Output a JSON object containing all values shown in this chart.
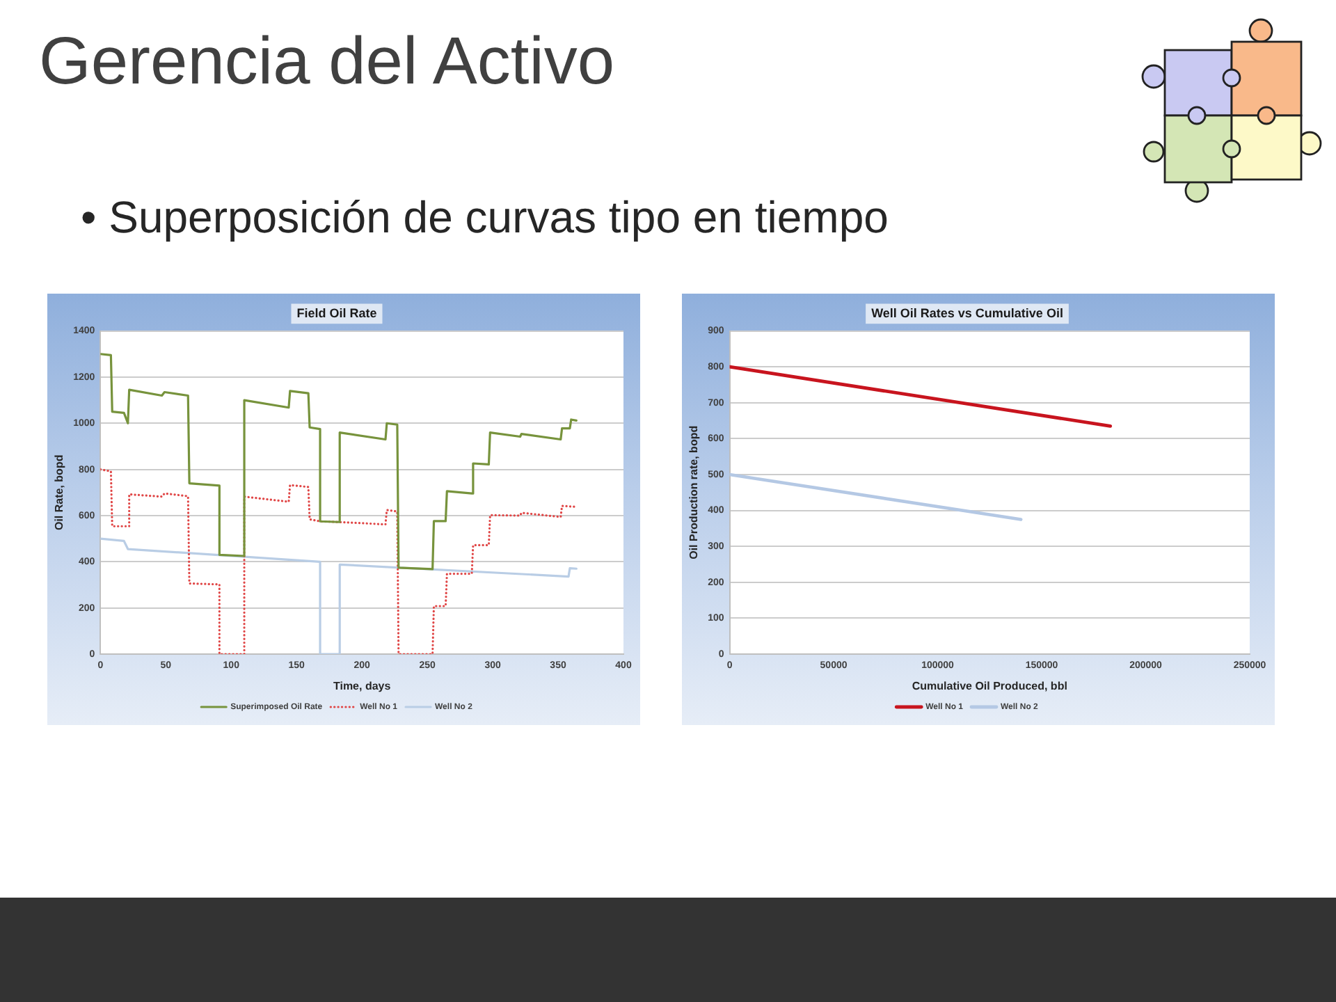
{
  "chart_data": [
    {
      "type": "line",
      "title": "Field Oil Rate",
      "xlabel": "Time, days",
      "ylabel": "Oil Rate, bopd",
      "annotations": [
        "Gerencia del Activo",
        "• Superposición de curvas tipo en tiempo"
      ],
      "xlim": [
        0,
        400
      ],
      "xticks": [
        0,
        50,
        100,
        150,
        200,
        250,
        300,
        350,
        400
      ],
      "ylim": [
        0,
        1400
      ],
      "yticks": [
        0,
        200,
        400,
        600,
        800,
        1000,
        1200,
        1400
      ],
      "grid": "y",
      "legend": "bottom",
      "series": [
        {
          "name": "Superimposed Oil Rate",
          "color": "#77933c",
          "x": [
            0,
            8,
            9,
            18,
            21,
            22,
            47,
            49,
            67,
            68,
            91,
            91,
            110,
            110,
            144,
            145,
            159,
            160,
            168,
            168,
            183,
            183,
            218,
            219,
            227,
            228,
            254,
            255,
            264,
            265,
            284,
            285,
            297,
            298,
            321,
            322,
            352,
            353,
            359,
            360,
            364
          ],
          "values": [
            1300,
            1295,
            1050,
            1045,
            1000,
            1145,
            1120,
            1135,
            1120,
            740,
            730,
            430,
            425,
            1100,
            1068,
            1140,
            1130,
            982,
            975,
            575,
            572,
            960,
            930,
            1000,
            994,
            374,
            368,
            576,
            576,
            706,
            696,
            826,
            822,
            960,
            942,
            954,
            930,
            978,
            978,
            1016,
            1012
          ]
        },
        {
          "name": "Well No 1",
          "color": "#e04646",
          "line_style": "dotted",
          "x": [
            0,
            8,
            9,
            22,
            22,
            47,
            49,
            67,
            68,
            91,
            91,
            110,
            110,
            144,
            145,
            159,
            160,
            168,
            183,
            218,
            219,
            227,
            228,
            254,
            255,
            264,
            265,
            284,
            285,
            297,
            298,
            321,
            322,
            352,
            353,
            364
          ],
          "values": [
            800,
            792,
            554,
            554,
            692,
            682,
            696,
            684,
            306,
            302,
            0,
            0,
            682,
            660,
            732,
            724,
            584,
            575,
            572,
            562,
            624,
            618,
            0,
            0,
            208,
            208,
            348,
            348,
            472,
            472,
            602,
            600,
            612,
            594,
            642,
            638
          ]
        },
        {
          "name": "Well No 2",
          "color": "#b9cde5",
          "x": [
            0,
            18,
            21,
            168,
            168,
            183,
            183,
            358,
            359,
            364
          ],
          "values": [
            500,
            490,
            455,
            400,
            0,
            0,
            388,
            336,
            372,
            370
          ]
        }
      ]
    },
    {
      "type": "line",
      "title": "Well Oil Rates vs Cumulative Oil",
      "xlabel": "Cumulative Oil Produced, bbl",
      "ylabel": "Oil Production rate, bopd",
      "xlim": [
        0,
        250000
      ],
      "xticks": [
        0,
        50000,
        100000,
        150000,
        200000,
        250000
      ],
      "ylim": [
        0,
        900
      ],
      "yticks": [
        0,
        100,
        200,
        300,
        400,
        500,
        600,
        700,
        800,
        900
      ],
      "grid": "y",
      "legend": "bottom",
      "series": [
        {
          "name": "Well No 1",
          "color": "#c8141e",
          "x": [
            0,
            183000
          ],
          "values": [
            800,
            635
          ]
        },
        {
          "name": "Well No 2",
          "color": "#b4c8e4",
          "x": [
            0,
            140000
          ],
          "values": [
            500,
            375
          ]
        }
      ]
    }
  ]
}
